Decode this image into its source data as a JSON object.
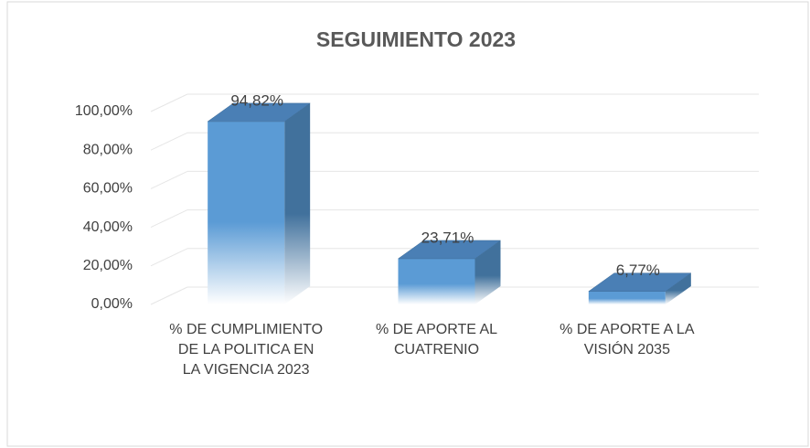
{
  "chart_data": {
    "type": "bar3d",
    "title": "SEGUIMIENTO 2023",
    "categories": [
      "% DE CUMPLIMIENTO DE LA POLITICA  EN LA VIGENCIA  2023",
      "% DE APORTE AL CUATRENIO",
      "% DE APORTE A LA VISIÓN 2035"
    ],
    "values": [
      94.82,
      23.71,
      6.77
    ],
    "value_labels": [
      "94,82%",
      "23,71%",
      "6,77%"
    ],
    "color": "#5b9bd5",
    "ylim": [
      0,
      100
    ],
    "yticks": [
      {
        "value": 0,
        "label": "0,00%"
      },
      {
        "value": 20,
        "label": "20,00%"
      },
      {
        "value": 40,
        "label": "40,00%"
      },
      {
        "value": 60,
        "label": "60,00%"
      },
      {
        "value": 80,
        "label": "80,00%"
      },
      {
        "value": 100,
        "label": "100,00%"
      }
    ],
    "grid": true
  }
}
